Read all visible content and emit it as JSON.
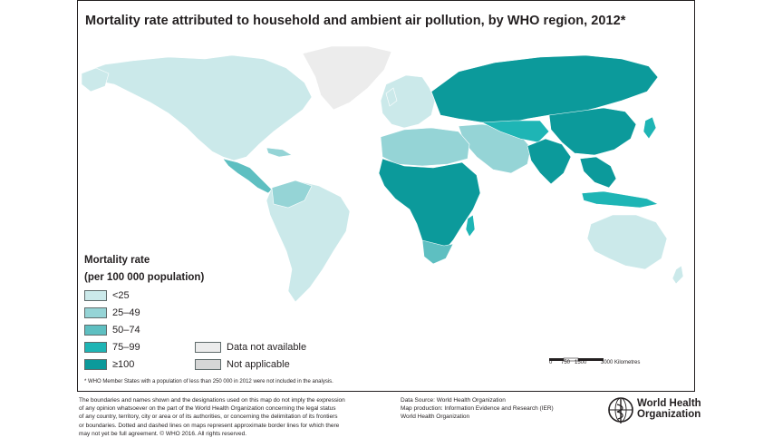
{
  "title": "Mortality rate attributed to household and ambient air pollution, by WHO region, 2012*",
  "legend": {
    "title_line1": "Mortality rate",
    "title_line2": "(per 100 000 population)",
    "items": [
      {
        "label": "<25",
        "color": "#cbe9ea"
      },
      {
        "label": "25–49",
        "color": "#95d4d6"
      },
      {
        "label": "50–74",
        "color": "#5ebfc1"
      },
      {
        "label": "75–99",
        "color": "#1eb5b5"
      },
      {
        "label": "≥100",
        "color": "#0c9a9b"
      }
    ],
    "extra": [
      {
        "label": "Data not available",
        "color": "#ececec"
      },
      {
        "label": "Not applicable",
        "color": "#d6d6d6"
      }
    ]
  },
  "scale": {
    "ticks": [
      "0",
      "750",
      "1500",
      "3000 Kilometres"
    ]
  },
  "footnote": "* WHO Member States with a population of less than 250 000 in 2012 were not included in the analysis.",
  "disclaimer": [
    "The boundaries and names shown and the designations used on this map do not imply the expression",
    "of any opinion whatsoever on the part of the World Health Organization concerning the legal status",
    "of any country, territory, city or area or of its authorities, or concerning the delimitation of its frontiers",
    "or boundaries. Dotted and dashed lines on maps represent approximate border lines for which there",
    "may not yet be full agreement. © WHO 2016. All rights reserved."
  ],
  "source": [
    "Data Source: World Health Organization",
    "Map production: Information Evidence and Research (IER)",
    "World Health Organization"
  ],
  "org": {
    "line1": "World Health",
    "line2": "Organization"
  },
  "regions": [
    {
      "name": "North America",
      "category": "<25"
    },
    {
      "name": "Greenland",
      "category": "Data not available"
    },
    {
      "name": "Central America and Caribbean",
      "category": "50–74"
    },
    {
      "name": "South America",
      "category": "<25"
    },
    {
      "name": "Western Europe",
      "category": "<25"
    },
    {
      "name": "Eastern Europe and Russia",
      "category": "≥100"
    },
    {
      "name": "North Africa and Middle East",
      "category": "25–49"
    },
    {
      "name": "Sub-Saharan Africa",
      "category": "≥100"
    },
    {
      "name": "South Asia",
      "category": "≥100"
    },
    {
      "name": "China",
      "category": "≥100"
    },
    {
      "name": "South-East Asia",
      "category": "≥100"
    },
    {
      "name": "Australia",
      "category": "<25"
    }
  ]
}
